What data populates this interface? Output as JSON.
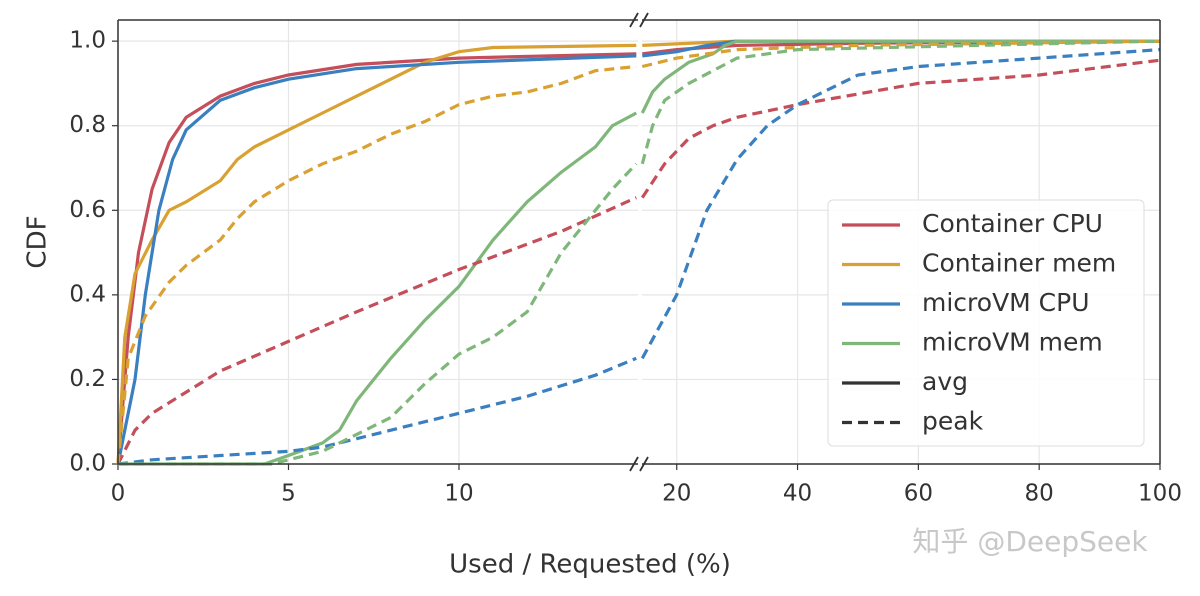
{
  "chart_data": {
    "type": "line",
    "x_label": "Used / Requested (%)",
    "y_label": "CDF",
    "watermark": "知乎 @DeepSeek",
    "ylim": [
      0,
      1.05
    ],
    "yticks": [
      {
        "value": 0,
        "label": "0.0"
      },
      {
        "value": 0.2,
        "label": "0.2"
      },
      {
        "value": 0.4,
        "label": "0.4"
      },
      {
        "value": 0.6,
        "label": "0.6"
      },
      {
        "value": 0.8,
        "label": "0.8"
      },
      {
        "value": 1.0,
        "label": "1.0"
      }
    ],
    "x_segments": [
      {
        "xlim": [
          0,
          15.25
        ],
        "xticks": [
          0,
          5,
          10
        ]
      },
      {
        "xlim": [
          14.25,
          100
        ],
        "xticks": [
          20,
          40,
          60,
          80,
          100
        ]
      }
    ],
    "grid": true,
    "legend": "lower right",
    "groups": [
      {
        "name": "Container CPU",
        "color": "#c44e5a"
      },
      {
        "name": "Container mem",
        "color": "#d9a032"
      },
      {
        "name": "microVM CPU",
        "color": "#3a7fc0"
      },
      {
        "name": "microVM mem",
        "color": "#7fb77a"
      }
    ],
    "styles": [
      {
        "name": "avg",
        "dashed": false
      },
      {
        "name": "peak",
        "dashed": true
      }
    ],
    "series": [
      {
        "group": 0,
        "style": 0,
        "x": [
          0,
          0.3,
          0.6,
          1,
          1.5,
          2,
          3,
          4,
          5,
          7,
          10,
          15.2,
          null,
          14.3,
          20,
          30,
          50,
          100
        ],
        "values": [
          0,
          0.3,
          0.5,
          0.65,
          0.76,
          0.82,
          0.87,
          0.9,
          0.92,
          0.945,
          0.96,
          0.97,
          null,
          0.97,
          0.98,
          0.99,
          0.995,
          1.0
        ]
      },
      {
        "group": 1,
        "style": 0,
        "x": [
          0,
          0.2,
          0.5,
          1,
          1.5,
          2,
          3,
          3.5,
          4,
          5,
          6,
          7,
          8,
          9,
          10,
          11,
          15.2,
          null,
          14.3,
          30,
          100
        ],
        "values": [
          0,
          0.3,
          0.45,
          0.53,
          0.6,
          0.62,
          0.67,
          0.72,
          0.75,
          0.79,
          0.83,
          0.87,
          0.91,
          0.95,
          0.975,
          0.985,
          0.99,
          null,
          0.99,
          1.0,
          1.0
        ]
      },
      {
        "group": 2,
        "style": 0,
        "x": [
          0,
          0.5,
          0.8,
          1.2,
          1.6,
          2,
          3,
          4,
          5,
          7,
          10,
          15.2,
          null,
          14.3,
          20,
          25,
          30,
          100
        ],
        "values": [
          0,
          0.2,
          0.4,
          0.6,
          0.72,
          0.79,
          0.86,
          0.89,
          0.91,
          0.935,
          0.95,
          0.965,
          null,
          0.965,
          0.975,
          0.99,
          1.0,
          1.0
        ]
      },
      {
        "group": 3,
        "style": 0,
        "x": [
          0,
          4.3,
          5,
          6,
          6.5,
          7,
          8,
          9,
          10,
          11,
          12,
          13,
          14,
          14.5,
          15.2,
          null,
          14.3,
          16,
          18,
          22,
          26,
          28,
          30,
          100
        ],
        "values": [
          0,
          0,
          0.02,
          0.05,
          0.08,
          0.15,
          0.25,
          0.34,
          0.42,
          0.53,
          0.62,
          0.69,
          0.75,
          0.8,
          0.83,
          null,
          0.83,
          0.88,
          0.91,
          0.95,
          0.97,
          0.99,
          1.0,
          1.0
        ]
      },
      {
        "group": 0,
        "style": 1,
        "x": [
          0,
          0.5,
          1,
          2,
          3,
          5,
          7,
          10,
          13,
          15.2,
          null,
          14.3,
          18,
          22,
          26,
          30,
          40,
          60,
          80,
          100
        ],
        "values": [
          0,
          0.08,
          0.12,
          0.17,
          0.22,
          0.29,
          0.36,
          0.46,
          0.55,
          0.63,
          null,
          0.63,
          0.71,
          0.77,
          0.8,
          0.82,
          0.85,
          0.9,
          0.92,
          0.955
        ]
      },
      {
        "group": 1,
        "style": 1,
        "x": [
          0,
          0.3,
          0.8,
          1.5,
          2,
          3,
          3.5,
          4,
          5,
          6,
          7,
          8,
          9,
          10,
          11,
          12,
          13,
          14,
          15.2,
          null,
          14.3,
          20,
          30,
          50,
          100
        ],
        "values": [
          0,
          0.25,
          0.35,
          0.43,
          0.47,
          0.53,
          0.58,
          0.62,
          0.67,
          0.71,
          0.74,
          0.78,
          0.81,
          0.85,
          0.87,
          0.88,
          0.9,
          0.93,
          0.94,
          null,
          0.94,
          0.96,
          0.98,
          0.99,
          1.0
        ]
      },
      {
        "group": 2,
        "style": 1,
        "x": [
          0,
          1,
          3,
          5,
          6,
          8,
          10,
          12,
          14,
          15.2,
          null,
          14.3,
          20,
          25,
          30,
          35,
          40,
          50,
          60,
          80,
          100
        ],
        "values": [
          0,
          0.01,
          0.02,
          0.03,
          0.04,
          0.08,
          0.12,
          0.16,
          0.21,
          0.25,
          null,
          0.25,
          0.4,
          0.6,
          0.72,
          0.8,
          0.85,
          0.92,
          0.94,
          0.96,
          0.98
        ]
      },
      {
        "group": 3,
        "style": 1,
        "x": [
          0,
          4.5,
          5,
          6,
          7,
          8,
          9,
          10,
          11,
          12,
          13,
          14,
          14.5,
          15.2,
          null,
          14.3,
          16,
          18,
          22,
          26,
          30,
          40,
          100
        ],
        "values": [
          0,
          0,
          0.01,
          0.03,
          0.07,
          0.11,
          0.19,
          0.26,
          0.3,
          0.36,
          0.5,
          0.6,
          0.65,
          0.71,
          null,
          0.71,
          0.8,
          0.86,
          0.9,
          0.93,
          0.96,
          0.98,
          1.0
        ]
      }
    ]
  }
}
